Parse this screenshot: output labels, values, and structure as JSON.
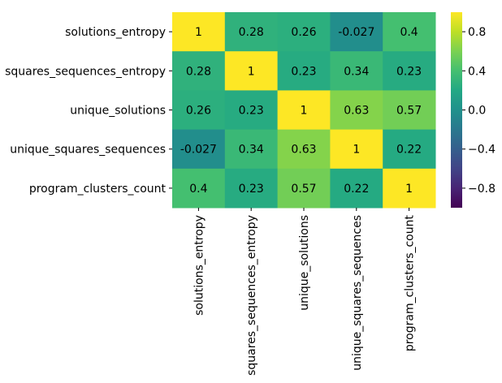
{
  "chart_data": {
    "type": "heatmap",
    "title": "",
    "xlabel": "",
    "ylabel": "",
    "rows": [
      "solutions_entropy",
      "squares_sequences_entropy",
      "unique_solutions",
      "unique_squares_sequences",
      "program_clusters_count"
    ],
    "columns": [
      "solutions_entropy",
      "squares_sequences_entropy",
      "unique_solutions",
      "unique_squares_sequences",
      "program_clusters_count"
    ],
    "values": [
      [
        1,
        0.28,
        0.26,
        -0.027,
        0.4
      ],
      [
        0.28,
        1,
        0.23,
        0.34,
        0.23
      ],
      [
        0.26,
        0.23,
        1,
        0.63,
        0.57
      ],
      [
        -0.027,
        0.34,
        0.63,
        1,
        0.22
      ],
      [
        0.4,
        0.23,
        0.57,
        0.22,
        1
      ]
    ],
    "cell_labels": [
      [
        "1",
        "0.28",
        "0.26",
        "-0.027",
        "0.4"
      ],
      [
        "0.28",
        "1",
        "0.23",
        "0.34",
        "0.23"
      ],
      [
        "0.26",
        "0.23",
        "1",
        "0.63",
        "0.57"
      ],
      [
        "-0.027",
        "0.34",
        "0.63",
        "1",
        "0.22"
      ],
      [
        "0.4",
        "0.23",
        "0.57",
        "0.22",
        "1"
      ]
    ],
    "colormap": "viridis",
    "vmin": -1,
    "vmax": 1,
    "colorbar_ticks": [
      0.8,
      0.4,
      0.0,
      -0.4,
      -0.8
    ],
    "colorbar_tick_labels": [
      "0.8",
      "0.4",
      "0.0",
      "−0.4",
      "−0.8"
    ]
  }
}
